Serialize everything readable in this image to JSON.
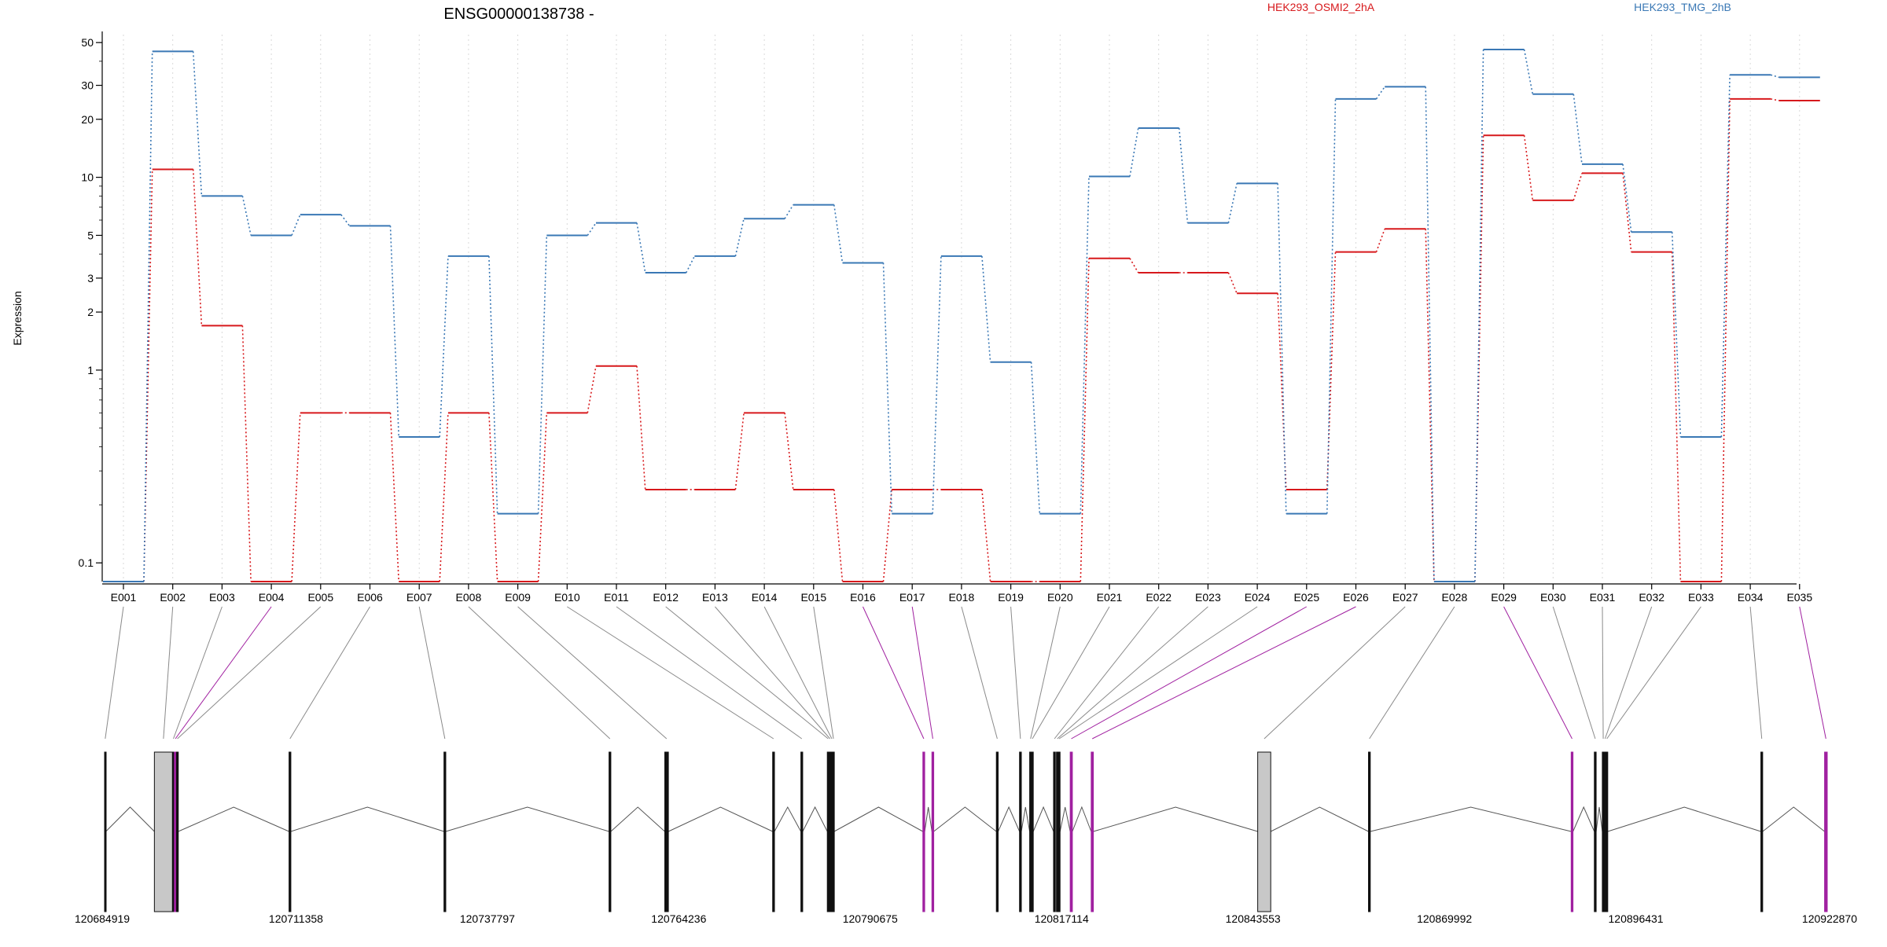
{
  "chart_data": {
    "type": "line",
    "title": "ENSG00000138738 -",
    "ylabel": "Expression",
    "yscale": "log",
    "ylim": [
      0.08,
      55
    ],
    "yticks": [
      0.1,
      1,
      2,
      3,
      5,
      10,
      20,
      30,
      50
    ],
    "ytick_labels": [
      "0.1",
      "1",
      "2",
      "3",
      "5",
      "10",
      "20",
      "30",
      "50"
    ],
    "grid": "vertical dotted lines at each exon",
    "legend": "top, horizontal",
    "categories": [
      "E001",
      "E002",
      "E003",
      "E004",
      "E005",
      "E006",
      "E007",
      "E008",
      "E009",
      "E010",
      "E011",
      "E012",
      "E013",
      "E014",
      "E015",
      "E016",
      "E017",
      "E018",
      "E019",
      "E020",
      "E021",
      "E022",
      "E023",
      "E024",
      "E025",
      "E026",
      "E027",
      "E028",
      "E029",
      "E030",
      "E031",
      "E032",
      "E033",
      "E034",
      "E035"
    ],
    "series": [
      {
        "name": "HEK293_OSMI2_2hA",
        "color": "#d7191c",
        "values": [
          0.08,
          11,
          1.7,
          0.08,
          0.6,
          0.6,
          0.08,
          0.6,
          0.08,
          0.6,
          1.05,
          0.24,
          0.24,
          0.6,
          0.24,
          0.08,
          0.24,
          0.24,
          0.08,
          0.08,
          3.8,
          3.2,
          3.2,
          2.5,
          0.24,
          4.1,
          5.4,
          0.08,
          16.5,
          7.6,
          10.5,
          4.1,
          0.08,
          25.5,
          25
        ]
      },
      {
        "name": "HEK293_TMG_2hB",
        "color": "#3a78b5",
        "values": [
          0.08,
          45,
          8,
          5,
          6.4,
          5.6,
          0.45,
          3.9,
          0.18,
          5,
          5.8,
          3.2,
          3.9,
          6.1,
          7.2,
          3.6,
          0.18,
          3.9,
          1.1,
          0.18,
          10.1,
          18,
          5.8,
          9.3,
          0.18,
          25.5,
          29.5,
          0.08,
          46,
          27,
          11.7,
          5.2,
          0.45,
          34,
          33
        ]
      }
    ],
    "gene_model": {
      "coordinate_labels": [
        "120684919",
        "120711358",
        "120737797",
        "120764236",
        "120790675",
        "120817114",
        "120843553",
        "120869992",
        "120896431",
        "120922870"
      ],
      "range": [
        120684919,
        120922870
      ],
      "highlight_color": "#a020a0",
      "exons": [
        {
          "id": "E001",
          "start": 120684919,
          "end": 120685100,
          "hl": false
        },
        {
          "id": "E002",
          "start": 120691800,
          "end": 120694300,
          "hl": false
        },
        {
          "id": "E003",
          "start": 120694300,
          "end": 120694550,
          "hl": false
        },
        {
          "id": "E004",
          "start": 120694550,
          "end": 120694850,
          "hl": true
        },
        {
          "id": "E005",
          "start": 120694850,
          "end": 120695100,
          "hl": false
        },
        {
          "id": "E006",
          "start": 120710400,
          "end": 120710650,
          "hl": false
        },
        {
          "id": "E007",
          "start": 120731800,
          "end": 120732050,
          "hl": false
        },
        {
          "id": "E008",
          "start": 120754600,
          "end": 120754850,
          "hl": false
        },
        {
          "id": "E009",
          "start": 120762300,
          "end": 120762800,
          "hl": false
        },
        {
          "id": "E010",
          "start": 120777200,
          "end": 120777450,
          "hl": false
        },
        {
          "id": "E011",
          "start": 120781100,
          "end": 120781350,
          "hl": false
        },
        {
          "id": "E012",
          "start": 120784750,
          "end": 120785000,
          "hl": false
        },
        {
          "id": "E013",
          "start": 120785000,
          "end": 120785250,
          "hl": false
        },
        {
          "id": "E014",
          "start": 120785250,
          "end": 120785500,
          "hl": false
        },
        {
          "id": "E015",
          "start": 120785500,
          "end": 120785700,
          "hl": false
        },
        {
          "id": "E016",
          "start": 120797950,
          "end": 120798200,
          "hl": true
        },
        {
          "id": "E017",
          "start": 120799200,
          "end": 120799450,
          "hl": true
        },
        {
          "id": "E018",
          "start": 120808100,
          "end": 120808350,
          "hl": false
        },
        {
          "id": "E019",
          "start": 120811300,
          "end": 120811550,
          "hl": false
        },
        {
          "id": "E020",
          "start": 120812700,
          "end": 120812950,
          "hl": false
        },
        {
          "id": "E021",
          "start": 120812950,
          "end": 120813200,
          "hl": false
        },
        {
          "id": "E022",
          "start": 120816000,
          "end": 120816250,
          "hl": false
        },
        {
          "id": "E023",
          "start": 120816400,
          "end": 120816650,
          "hl": false
        },
        {
          "id": "E024",
          "start": 120816650,
          "end": 120816900,
          "hl": false
        },
        {
          "id": "E025",
          "start": 120818300,
          "end": 120818600,
          "hl": true
        },
        {
          "id": "E026",
          "start": 120821200,
          "end": 120821500,
          "hl": true
        },
        {
          "id": "E027",
          "start": 120844200,
          "end": 120846000,
          "hl": false
        },
        {
          "id": "E028",
          "start": 120859500,
          "end": 120859750,
          "hl": false
        },
        {
          "id": "E029",
          "start": 120887500,
          "end": 120887750,
          "hl": true
        },
        {
          "id": "E030",
          "start": 120890700,
          "end": 120890950,
          "hl": false
        },
        {
          "id": "E031",
          "start": 120891800,
          "end": 120892050,
          "hl": false
        },
        {
          "id": "E032",
          "start": 120892050,
          "end": 120892300,
          "hl": false
        },
        {
          "id": "E033",
          "start": 120892300,
          "end": 120892550,
          "hl": false
        },
        {
          "id": "E034",
          "start": 120913700,
          "end": 120913950,
          "hl": false
        },
        {
          "id": "E035",
          "start": 120922500,
          "end": 120922870,
          "hl": true
        }
      ]
    }
  }
}
